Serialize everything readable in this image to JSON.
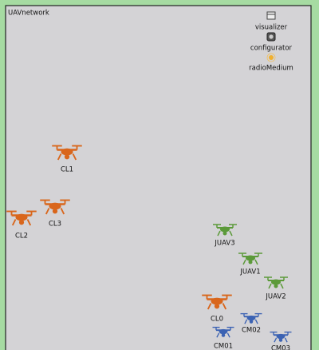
{
  "network": {
    "title": "UAVnetwork",
    "modules": [
      {
        "label": "visualizer"
      },
      {
        "label": "configurator"
      },
      {
        "label": "radioMedium"
      }
    ],
    "nodes": [
      {
        "label": "CL1",
        "color": "#d9661c"
      },
      {
        "label": "CL2",
        "color": "#d9661c"
      },
      {
        "label": "CL3",
        "color": "#d9661c"
      },
      {
        "label": "JUAV3",
        "color": "#5c9a3a"
      },
      {
        "label": "JUAV1",
        "color": "#5c9a3a"
      },
      {
        "label": "JUAV2",
        "color": "#5c9a3a"
      },
      {
        "label": "CL0",
        "color": "#d9661c"
      },
      {
        "label": "CM02",
        "color": "#3b62b3"
      },
      {
        "label": "CM01",
        "color": "#3b62b3"
      },
      {
        "label": "CM03",
        "color": "#3b62b3"
      }
    ]
  }
}
